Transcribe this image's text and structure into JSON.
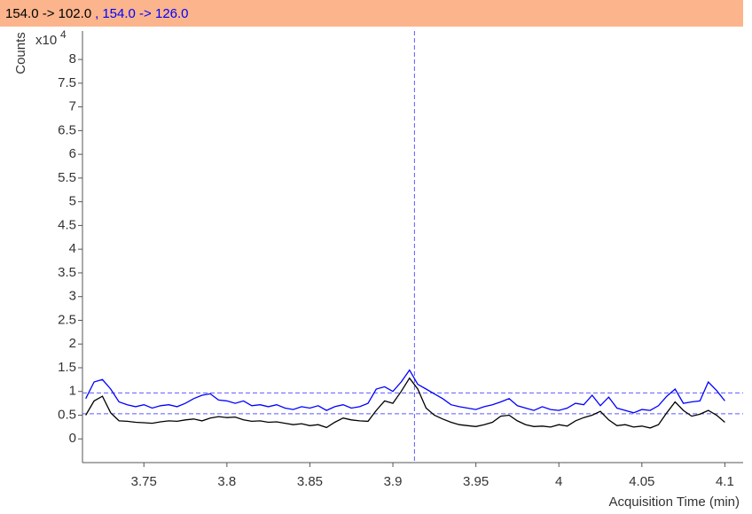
{
  "chart_data": {
    "type": "line",
    "x_label": "Acquisition Time (min)",
    "y_label": "Counts",
    "y_multiplier": "x10",
    "y_exponent": "4",
    "legend_separator": ",",
    "xlim": [
      3.713,
      4.111
    ],
    "ylim": [
      -0.5,
      8.6
    ],
    "xticks": [
      3.75,
      3.8,
      3.85,
      3.9,
      3.95,
      4,
      4.05,
      4.1
    ],
    "yticks": [
      0,
      0.5,
      1,
      1.5,
      2,
      2.5,
      3,
      3.5,
      4,
      4.5,
      5,
      5.5,
      6,
      6.5,
      7,
      7.5,
      8
    ],
    "reference_lines": {
      "y": [
        0.97,
        0.53
      ],
      "x": 3.913,
      "color": "#5a5aff"
    },
    "x": [
      3.715,
      3.72,
      3.725,
      3.73,
      3.735,
      3.74,
      3.745,
      3.75,
      3.755,
      3.76,
      3.765,
      3.77,
      3.775,
      3.78,
      3.785,
      3.79,
      3.795,
      3.8,
      3.805,
      3.81,
      3.815,
      3.82,
      3.825,
      3.83,
      3.835,
      3.84,
      3.845,
      3.85,
      3.855,
      3.86,
      3.865,
      3.87,
      3.875,
      3.88,
      3.885,
      3.89,
      3.895,
      3.9,
      3.905,
      3.91,
      3.915,
      3.92,
      3.925,
      3.93,
      3.935,
      3.94,
      3.945,
      3.95,
      3.955,
      3.96,
      3.965,
      3.97,
      3.975,
      3.98,
      3.985,
      3.99,
      3.995,
      4.0,
      4.005,
      4.01,
      4.015,
      4.02,
      4.025,
      4.03,
      4.035,
      4.04,
      4.045,
      4.05,
      4.055,
      4.06,
      4.065,
      4.07,
      4.075,
      4.08,
      4.085,
      4.09,
      4.095,
      4.1
    ],
    "series": [
      {
        "name": "154.0 -> 102.0",
        "color": "#000000",
        "values": [
          0.5,
          0.8,
          0.9,
          0.55,
          0.38,
          0.37,
          0.35,
          0.34,
          0.33,
          0.36,
          0.38,
          0.37,
          0.4,
          0.42,
          0.38,
          0.44,
          0.47,
          0.45,
          0.46,
          0.4,
          0.37,
          0.38,
          0.35,
          0.36,
          0.33,
          0.3,
          0.32,
          0.28,
          0.3,
          0.24,
          0.35,
          0.44,
          0.4,
          0.38,
          0.37,
          0.6,
          0.8,
          0.75,
          1.0,
          1.28,
          1.05,
          0.65,
          0.5,
          0.42,
          0.35,
          0.3,
          0.28,
          0.26,
          0.3,
          0.35,
          0.48,
          0.5,
          0.38,
          0.3,
          0.26,
          0.27,
          0.25,
          0.3,
          0.27,
          0.38,
          0.45,
          0.5,
          0.58,
          0.4,
          0.28,
          0.3,
          0.25,
          0.27,
          0.23,
          0.3,
          0.55,
          0.78,
          0.6,
          0.48,
          0.52,
          0.6,
          0.5,
          0.35
        ]
      },
      {
        "name": "154.0 -> 126.0",
        "color": "#0000ff",
        "values": [
          0.85,
          1.2,
          1.25,
          1.05,
          0.78,
          0.72,
          0.68,
          0.72,
          0.65,
          0.7,
          0.72,
          0.68,
          0.75,
          0.85,
          0.92,
          0.95,
          0.82,
          0.8,
          0.75,
          0.8,
          0.7,
          0.72,
          0.68,
          0.72,
          0.65,
          0.62,
          0.68,
          0.65,
          0.7,
          0.6,
          0.68,
          0.72,
          0.65,
          0.68,
          0.75,
          1.05,
          1.1,
          1.0,
          1.2,
          1.45,
          1.15,
          1.05,
          0.95,
          0.85,
          0.72,
          0.68,
          0.65,
          0.62,
          0.68,
          0.72,
          0.78,
          0.85,
          0.7,
          0.65,
          0.6,
          0.68,
          0.62,
          0.6,
          0.65,
          0.75,
          0.72,
          0.92,
          0.7,
          0.88,
          0.65,
          0.6,
          0.55,
          0.62,
          0.6,
          0.7,
          0.9,
          1.05,
          0.75,
          0.78,
          0.8,
          1.2,
          1.02,
          0.8
        ]
      }
    ]
  }
}
